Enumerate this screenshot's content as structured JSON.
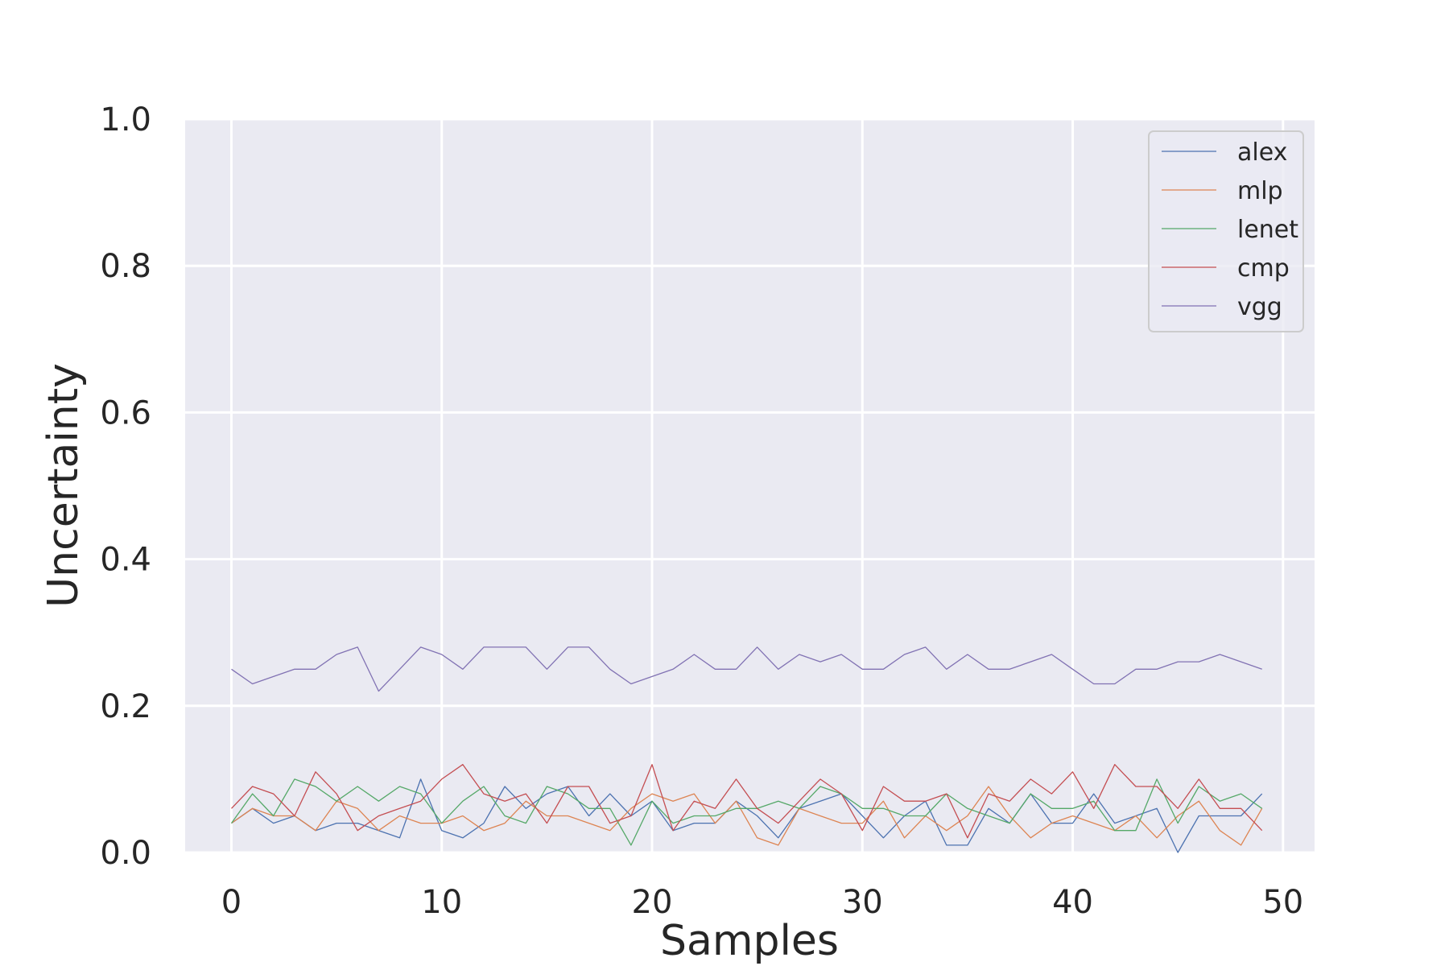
{
  "chart_data": {
    "type": "line",
    "title": "",
    "xlabel": "Samples",
    "ylabel": "Uncertainty",
    "xlim": [
      -2.2,
      51.5
    ],
    "ylim": [
      0.0,
      1.0
    ],
    "xticks": [
      0,
      10,
      20,
      30,
      40,
      50
    ],
    "yticks": [
      0.0,
      0.2,
      0.4,
      0.6,
      0.8,
      1.0
    ],
    "xtick_labels": [
      "0",
      "10",
      "20",
      "30",
      "40",
      "50"
    ],
    "ytick_labels": [
      "0.0",
      "0.2",
      "0.4",
      "0.6",
      "0.8",
      "1.0"
    ],
    "grid": true,
    "background": "#EAEAF2",
    "legend_position": "top-right",
    "x": [
      0,
      1,
      2,
      3,
      4,
      5,
      6,
      7,
      8,
      9,
      10,
      11,
      12,
      13,
      14,
      15,
      16,
      17,
      18,
      19,
      20,
      21,
      22,
      23,
      24,
      25,
      26,
      27,
      28,
      29,
      30,
      31,
      32,
      33,
      34,
      35,
      36,
      37,
      38,
      39,
      40,
      41,
      42,
      43,
      44,
      45,
      46,
      47,
      48,
      49
    ],
    "series": [
      {
        "name": "alex",
        "color": "#4C72B0",
        "values": [
          0.04,
          0.06,
          0.04,
          0.05,
          0.03,
          0.04,
          0.04,
          0.03,
          0.02,
          0.1,
          0.03,
          0.02,
          0.04,
          0.09,
          0.06,
          0.08,
          0.09,
          0.05,
          0.08,
          0.05,
          0.07,
          0.03,
          0.04,
          0.04,
          0.07,
          0.05,
          0.02,
          0.06,
          0.07,
          0.08,
          0.05,
          0.02,
          0.05,
          0.07,
          0.01,
          0.01,
          0.06,
          0.04,
          0.08,
          0.04,
          0.04,
          0.08,
          0.04,
          0.05,
          0.06,
          0.0,
          0.05,
          0.05,
          0.05,
          0.08
        ]
      },
      {
        "name": "mlp",
        "color": "#DD8452",
        "values": [
          0.04,
          0.06,
          0.05,
          0.05,
          0.03,
          0.07,
          0.06,
          0.03,
          0.05,
          0.04,
          0.04,
          0.05,
          0.03,
          0.04,
          0.07,
          0.05,
          0.05,
          0.04,
          0.03,
          0.06,
          0.08,
          0.07,
          0.08,
          0.04,
          0.07,
          0.02,
          0.01,
          0.06,
          0.05,
          0.04,
          0.04,
          0.07,
          0.02,
          0.05,
          0.03,
          0.05,
          0.09,
          0.05,
          0.02,
          0.04,
          0.05,
          0.04,
          0.03,
          0.05,
          0.02,
          0.05,
          0.07,
          0.03,
          0.01,
          0.06
        ]
      },
      {
        "name": "lenet",
        "color": "#55A868",
        "values": [
          0.04,
          0.08,
          0.05,
          0.1,
          0.09,
          0.07,
          0.09,
          0.07,
          0.09,
          0.08,
          0.04,
          0.07,
          0.09,
          0.05,
          0.04,
          0.09,
          0.08,
          0.06,
          0.06,
          0.01,
          0.07,
          0.04,
          0.05,
          0.05,
          0.06,
          0.06,
          0.07,
          0.06,
          0.09,
          0.08,
          0.06,
          0.06,
          0.05,
          0.05,
          0.08,
          0.06,
          0.05,
          0.04,
          0.08,
          0.06,
          0.06,
          0.07,
          0.03,
          0.03,
          0.1,
          0.04,
          0.09,
          0.07,
          0.08,
          0.06
        ]
      },
      {
        "name": "cmp",
        "color": "#C44E52",
        "values": [
          0.06,
          0.09,
          0.08,
          0.05,
          0.11,
          0.08,
          0.03,
          0.05,
          0.06,
          0.07,
          0.1,
          0.12,
          0.08,
          0.07,
          0.08,
          0.04,
          0.09,
          0.09,
          0.04,
          0.05,
          0.12,
          0.03,
          0.07,
          0.06,
          0.1,
          0.06,
          0.04,
          0.07,
          0.1,
          0.08,
          0.03,
          0.09,
          0.07,
          0.07,
          0.08,
          0.02,
          0.08,
          0.07,
          0.1,
          0.08,
          0.11,
          0.06,
          0.12,
          0.09,
          0.09,
          0.06,
          0.1,
          0.06,
          0.06,
          0.03
        ]
      },
      {
        "name": "vgg",
        "color": "#8172B3",
        "values": [
          0.25,
          0.23,
          0.24,
          0.25,
          0.25,
          0.27,
          0.28,
          0.22,
          0.25,
          0.28,
          0.27,
          0.25,
          0.28,
          0.28,
          0.28,
          0.25,
          0.28,
          0.28,
          0.25,
          0.23,
          0.24,
          0.25,
          0.27,
          0.25,
          0.25,
          0.28,
          0.25,
          0.27,
          0.26,
          0.27,
          0.25,
          0.25,
          0.27,
          0.28,
          0.25,
          0.27,
          0.25,
          0.25,
          0.26,
          0.27,
          0.25,
          0.23,
          0.23,
          0.25,
          0.25,
          0.26,
          0.26,
          0.27,
          0.26,
          0.25
        ]
      }
    ]
  }
}
